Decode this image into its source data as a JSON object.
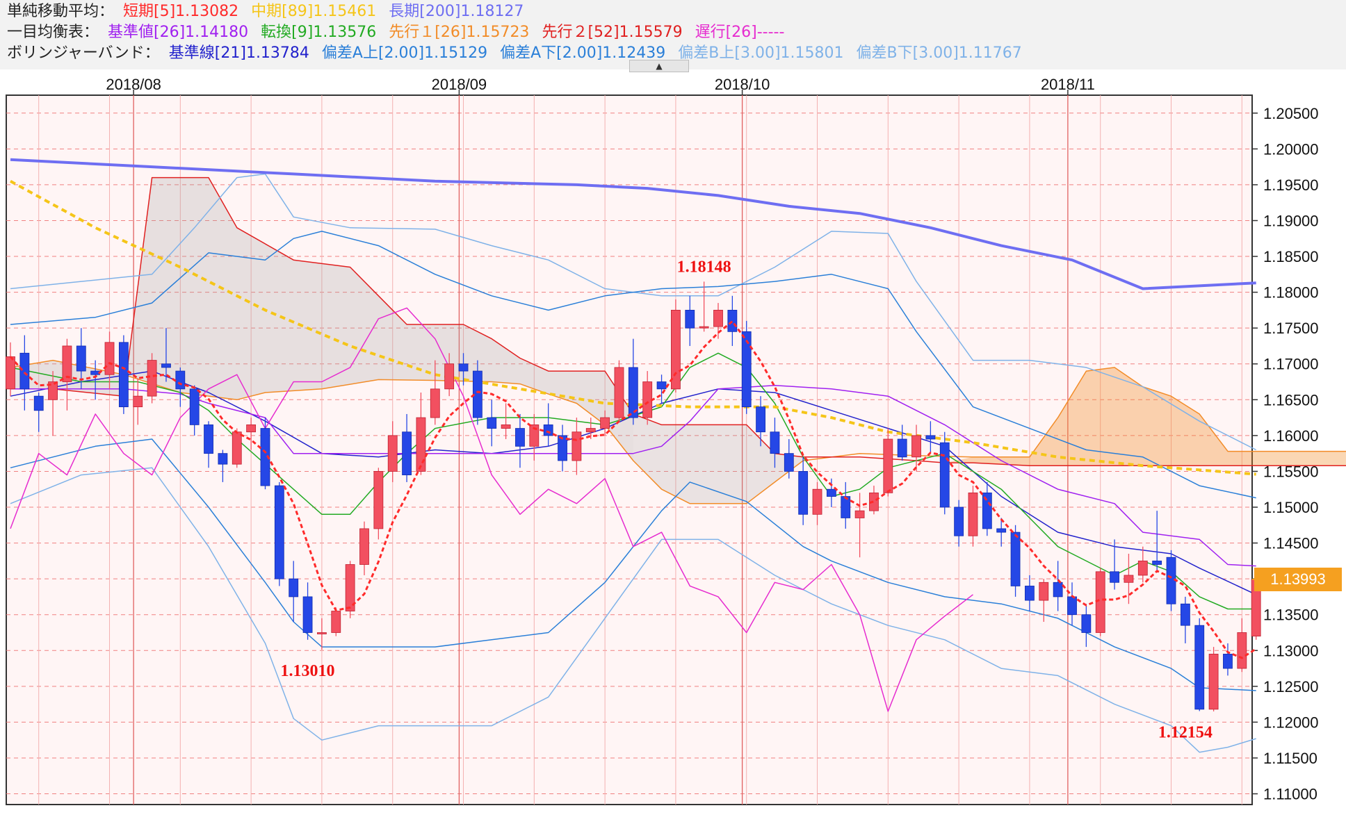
{
  "legend": {
    "sma": {
      "title": "単純移動平均：",
      "items": [
        {
          "text": "短期[5]1.13082",
          "color": "#ff2a2a"
        },
        {
          "text": "中期[89]1.15461",
          "color": "#f5c518"
        },
        {
          "text": "長期[200]1.18127",
          "color": "#6e6ef2"
        }
      ]
    },
    "ichimoku": {
      "title": "一目均衡表：",
      "items": [
        {
          "text": "基準値[26]1.14180",
          "color": "#a020f0"
        },
        {
          "text": "転換[9]1.13576",
          "color": "#22aa22"
        },
        {
          "text": "先行１[26]1.15723",
          "color": "#f28c28"
        },
        {
          "text": "先行２[52]1.15579",
          "color": "#e02020"
        },
        {
          "text": "遅行[26]-----",
          "color": "#e62ccf"
        }
      ]
    },
    "bollinger": {
      "title": "ボリンジャーバンド：",
      "items": [
        {
          "text": "基準線[21]1.13784",
          "color": "#2222cc"
        },
        {
          "text": "偏差A上[2.00]1.15129",
          "color": "#2a7fd8"
        },
        {
          "text": "偏差A下[2.00]1.12439",
          "color": "#2a7fd8"
        },
        {
          "text": "偏差B上[3.00]1.15801",
          "color": "#7fb2e8"
        },
        {
          "text": "偏差B下[3.00]1.11767",
          "color": "#7fb2e8"
        }
      ]
    },
    "toggle_label": "▲"
  },
  "chart_data": {
    "type": "candlestick",
    "months": [
      {
        "label": "2018/08",
        "index": 9
      },
      {
        "label": "2018/09",
        "index": 32
      },
      {
        "label": "2018/10",
        "index": 52
      },
      {
        "label": "2018/11",
        "index": 75
      }
    ],
    "y_ticks": [
      "1.20500",
      "1.20000",
      "1.19500",
      "1.19000",
      "1.18500",
      "1.18000",
      "1.17500",
      "1.17000",
      "1.16500",
      "1.16000",
      "1.15500",
      "1.15000",
      "1.14500",
      "1.14000",
      "1.13500",
      "1.13000",
      "1.12500",
      "1.12000",
      "1.11500",
      "1.11000"
    ],
    "ylim": [
      1.1085,
      1.2075
    ],
    "current_price": "1.13993",
    "annotations": [
      {
        "text": "1.18148",
        "index": 49,
        "price": 1.18148,
        "pos": "above"
      },
      {
        "text": "1.13010",
        "index": 21,
        "price": 1.1301,
        "pos": "below"
      },
      {
        "text": "1.12154",
        "index": 83,
        "price": 1.12154,
        "pos": "below"
      }
    ],
    "candles": [
      [
        1.1665,
        1.171,
        1.173,
        1.1655
      ],
      [
        1.1715,
        1.1665,
        1.174,
        1.1635
      ],
      [
        1.1655,
        1.1635,
        1.166,
        1.1605
      ],
      [
        1.165,
        1.1675,
        1.169,
        1.16
      ],
      [
        1.1675,
        1.1725,
        1.1735,
        1.1635
      ],
      [
        1.1725,
        1.169,
        1.175,
        1.1665
      ],
      [
        1.169,
        1.1685,
        1.1705,
        1.165
      ],
      [
        1.1685,
        1.173,
        1.1745,
        1.1665
      ],
      [
        1.173,
        1.164,
        1.174,
        1.163
      ],
      [
        1.164,
        1.1655,
        1.168,
        1.1615
      ],
      [
        1.1655,
        1.1705,
        1.1715,
        1.1645
      ],
      [
        1.17,
        1.1695,
        1.175,
        1.1675
      ],
      [
        1.169,
        1.1665,
        1.1695,
        1.164
      ],
      [
        1.1665,
        1.1615,
        1.167,
        1.16
      ],
      [
        1.1615,
        1.1575,
        1.162,
        1.1555
      ],
      [
        1.1575,
        1.156,
        1.158,
        1.1535
      ],
      [
        1.156,
        1.1605,
        1.161,
        1.1555
      ],
      [
        1.1605,
        1.1615,
        1.1625,
        1.158
      ],
      [
        1.161,
        1.153,
        1.1625,
        1.1525
      ],
      [
        1.153,
        1.14,
        1.1535,
        1.139
      ],
      [
        1.14,
        1.1375,
        1.1425,
        1.134
      ],
      [
        1.1375,
        1.1325,
        1.1395,
        1.1315
      ],
      [
        1.1325,
        1.1325,
        1.1345,
        1.1301
      ],
      [
        1.1325,
        1.1355,
        1.136,
        1.132
      ],
      [
        1.1355,
        1.142,
        1.1425,
        1.1345
      ],
      [
        1.142,
        1.147,
        1.148,
        1.1405
      ],
      [
        1.147,
        1.155,
        1.1555,
        1.1455
      ],
      [
        1.155,
        1.16,
        1.162,
        1.1535
      ],
      [
        1.1605,
        1.1545,
        1.163,
        1.1535
      ],
      [
        1.155,
        1.1625,
        1.166,
        1.1545
      ],
      [
        1.1625,
        1.1665,
        1.1705,
        1.1615
      ],
      [
        1.1665,
        1.17,
        1.1715,
        1.1655
      ],
      [
        1.17,
        1.169,
        1.1715,
        1.167
      ],
      [
        1.169,
        1.1625,
        1.1705,
        1.1615
      ],
      [
        1.1625,
        1.161,
        1.165,
        1.1585
      ],
      [
        1.161,
        1.1615,
        1.1645,
        1.1595
      ],
      [
        1.161,
        1.1585,
        1.163,
        1.1555
      ],
      [
        1.1585,
        1.1615,
        1.163,
        1.1565
      ],
      [
        1.1615,
        1.16,
        1.1645,
        1.1585
      ],
      [
        1.16,
        1.1565,
        1.1615,
        1.155
      ],
      [
        1.1565,
        1.1605,
        1.1625,
        1.1545
      ],
      [
        1.1605,
        1.161,
        1.1625,
        1.1595
      ],
      [
        1.161,
        1.1625,
        1.1635,
        1.16
      ],
      [
        1.1625,
        1.1695,
        1.1705,
        1.162
      ],
      [
        1.1695,
        1.1625,
        1.1735,
        1.1615
      ],
      [
        1.1625,
        1.1675,
        1.169,
        1.1615
      ],
      [
        1.1675,
        1.1665,
        1.1685,
        1.1645
      ],
      [
        1.1665,
        1.1775,
        1.179,
        1.166
      ],
      [
        1.1775,
        1.175,
        1.1795,
        1.1725
      ],
      [
        1.175,
        1.1752,
        1.18148,
        1.1745
      ],
      [
        1.1752,
        1.1775,
        1.1785,
        1.1735
      ],
      [
        1.1775,
        1.1745,
        1.1795,
        1.1725
      ],
      [
        1.1745,
        1.164,
        1.176,
        1.163
      ],
      [
        1.164,
        1.1605,
        1.1655,
        1.1585
      ],
      [
        1.1605,
        1.1575,
        1.1625,
        1.1555
      ],
      [
        1.1575,
        1.155,
        1.1595,
        1.154
      ],
      [
        1.155,
        1.149,
        1.157,
        1.1475
      ],
      [
        1.149,
        1.1525,
        1.1535,
        1.1475
      ],
      [
        1.1525,
        1.1515,
        1.154,
        1.15
      ],
      [
        1.1515,
        1.1485,
        1.1535,
        1.147
      ],
      [
        1.1485,
        1.1495,
        1.152,
        1.143
      ],
      [
        1.1495,
        1.152,
        1.153,
        1.149
      ],
      [
        1.152,
        1.1595,
        1.161,
        1.1515
      ],
      [
        1.1595,
        1.157,
        1.1615,
        1.1565
      ],
      [
        1.157,
        1.16,
        1.1615,
        1.155
      ],
      [
        1.16,
        1.1595,
        1.162,
        1.1575
      ],
      [
        1.159,
        1.15,
        1.1605,
        1.149
      ],
      [
        1.15,
        1.146,
        1.151,
        1.1445
      ],
      [
        1.146,
        1.152,
        1.153,
        1.1445
      ],
      [
        1.152,
        1.147,
        1.1535,
        1.146
      ],
      [
        1.147,
        1.1465,
        1.1485,
        1.1445
      ],
      [
        1.1465,
        1.139,
        1.1475,
        1.1375
      ],
      [
        1.139,
        1.137,
        1.1405,
        1.1355
      ],
      [
        1.137,
        1.1395,
        1.14,
        1.134
      ],
      [
        1.1395,
        1.1375,
        1.1425,
        1.1355
      ],
      [
        1.1375,
        1.135,
        1.1395,
        1.1335
      ],
      [
        1.135,
        1.1325,
        1.1365,
        1.1305
      ],
      [
        1.1325,
        1.141,
        1.1415,
        1.132
      ],
      [
        1.141,
        1.1395,
        1.1455,
        1.1385
      ],
      [
        1.1395,
        1.1405,
        1.1435,
        1.1365
      ],
      [
        1.1405,
        1.1425,
        1.1445,
        1.1395
      ],
      [
        1.1425,
        1.142,
        1.1495,
        1.141
      ],
      [
        1.143,
        1.1365,
        1.144,
        1.1355
      ],
      [
        1.1365,
        1.1335,
        1.1375,
        1.131
      ],
      [
        1.1335,
        1.1218,
        1.1345,
        1.12154
      ],
      [
        1.1218,
        1.1295,
        1.1305,
        1.1215
      ],
      [
        1.1295,
        1.1275,
        1.131,
        1.1265
      ],
      [
        1.1275,
        1.1325,
        1.1345,
        1.127
      ],
      [
        1.132,
        1.1399,
        1.1405,
        1.1315
      ]
    ],
    "series": [
      {
        "name": "長期[200]",
        "color": "#6e6ef2",
        "width": 4,
        "points": [
          [
            0,
            1.1985
          ],
          [
            10,
            1.1975
          ],
          [
            20,
            1.1965
          ],
          [
            30,
            1.1955
          ],
          [
            40,
            1.195
          ],
          [
            45,
            1.1945
          ],
          [
            50,
            1.1935
          ],
          [
            55,
            1.192
          ],
          [
            60,
            1.191
          ],
          [
            65,
            1.189
          ],
          [
            70,
            1.1865
          ],
          [
            75,
            1.1845
          ],
          [
            80,
            1.1805
          ],
          [
            88,
            1.1813
          ]
        ]
      },
      {
        "name": "中期[89]",
        "color": "#f5c518",
        "width": 4,
        "dash": "8,6",
        "points": [
          [
            0,
            1.1955
          ],
          [
            6,
            1.189
          ],
          [
            12,
            1.1835
          ],
          [
            18,
            1.1775
          ],
          [
            24,
            1.1725
          ],
          [
            30,
            1.1685
          ],
          [
            36,
            1.1665
          ],
          [
            42,
            1.1645
          ],
          [
            48,
            1.164
          ],
          [
            54,
            1.164
          ],
          [
            58,
            1.1625
          ],
          [
            62,
            1.1605
          ],
          [
            68,
            1.159
          ],
          [
            74,
            1.157
          ],
          [
            80,
            1.1558
          ],
          [
            88,
            1.1546
          ]
        ]
      }
    ]
  }
}
